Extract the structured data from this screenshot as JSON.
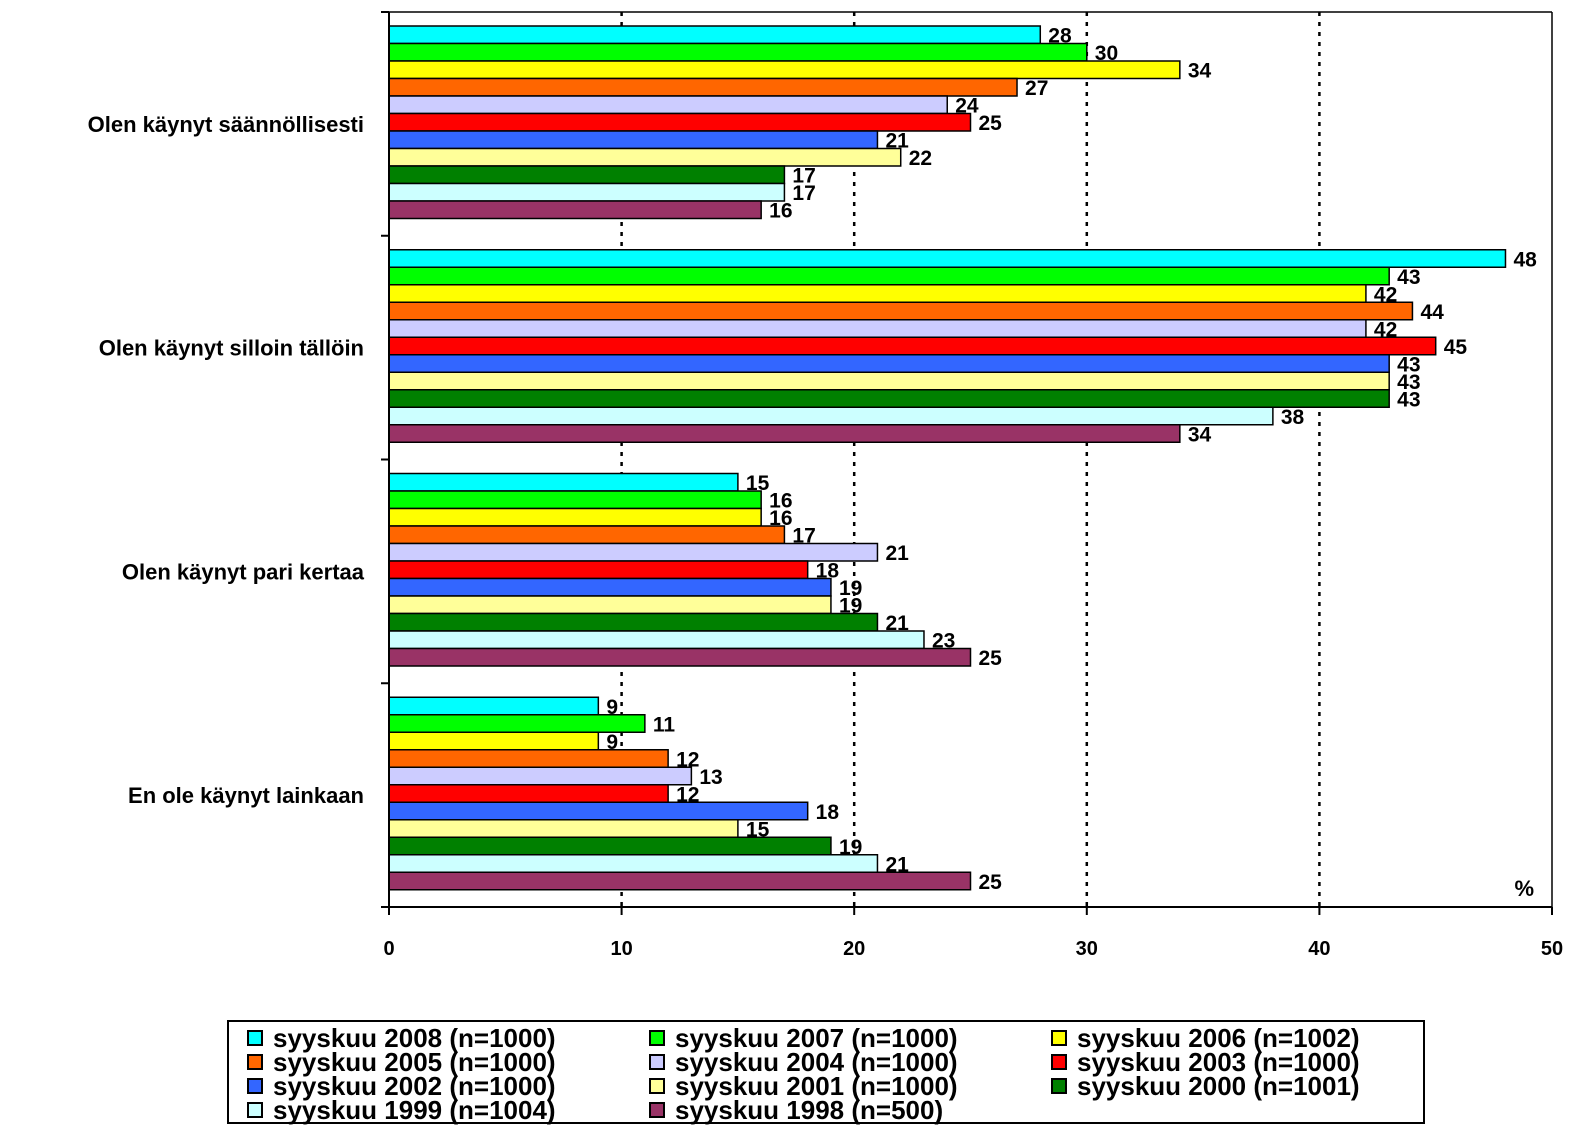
{
  "chart_data": {
    "type": "bar",
    "orientation": "horizontal",
    "categories": [
      "Olen käynyt säännöllisesti",
      "Olen käynyt silloin tällöin",
      "Olen käynyt pari kertaa",
      "En ole käynyt lainkaan"
    ],
    "series": [
      {
        "name": "syyskuu 2008 (n=1000)",
        "color": "#00FFFF",
        "values": [
          28,
          48,
          15,
          9
        ]
      },
      {
        "name": "syyskuu 2007 (n=1000)",
        "color": "#00FF00",
        "values": [
          30,
          43,
          16,
          11
        ]
      },
      {
        "name": "syyskuu 2006 (n=1002)",
        "color": "#FFFF00",
        "values": [
          34,
          42,
          16,
          9
        ]
      },
      {
        "name": "syyskuu 2005 (n=1000)",
        "color": "#FF6600",
        "values": [
          27,
          44,
          17,
          12
        ]
      },
      {
        "name": "syyskuu 2004 (n=1000)",
        "color": "#CCCCFF",
        "values": [
          24,
          42,
          21,
          13
        ]
      },
      {
        "name": "syyskuu 2003 (n=1000)",
        "color": "#FF0000",
        "values": [
          25,
          45,
          18,
          12
        ]
      },
      {
        "name": "syyskuu 2002 (n=1000)",
        "color": "#3366FF",
        "values": [
          21,
          43,
          19,
          18
        ]
      },
      {
        "name": "syyskuu 2001 (n=1000)",
        "color": "#FFFF99",
        "values": [
          22,
          43,
          19,
          15
        ]
      },
      {
        "name": "syyskuu 2000 (n=1001)",
        "color": "#008000",
        "values": [
          17,
          43,
          21,
          19
        ]
      },
      {
        "name": "syyskuu 1999 (n=1004)",
        "color": "#CCFFFF",
        "values": [
          17,
          38,
          23,
          21
        ]
      },
      {
        "name": "syyskuu 1998 (n=500)",
        "color": "#993366",
        "values": [
          16,
          34,
          25,
          25
        ]
      }
    ],
    "xlim": [
      0,
      50
    ],
    "x_ticks": [
      "0",
      "10",
      "20",
      "30",
      "40",
      "50"
    ],
    "unit_label": "%",
    "grid": "vertical dotted lines at 10, 20, 30, 40",
    "legend_position": "bottom",
    "title": "",
    "xlabel": "",
    "ylabel": ""
  }
}
